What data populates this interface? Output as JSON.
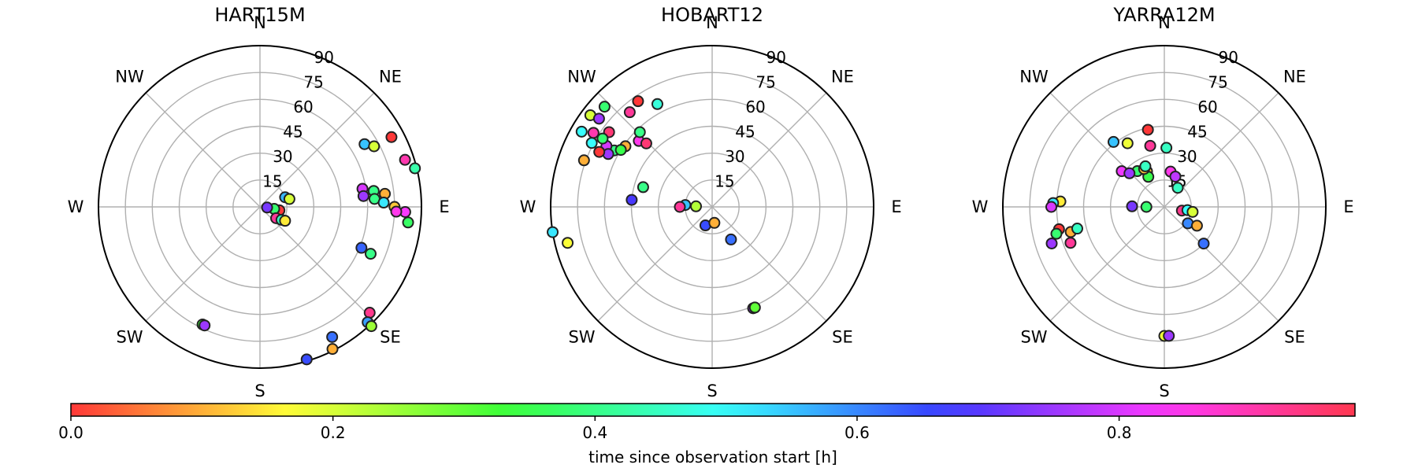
{
  "colorbar": {
    "label": "time since observation start [h]",
    "ticks": [
      0.0,
      0.2,
      0.4,
      0.6,
      0.8
    ],
    "tick_labels": [
      "0.0",
      "0.2",
      "0.4",
      "0.6",
      "0.8"
    ],
    "range": [
      0,
      0.98
    ],
    "colormap": "hsv"
  },
  "chart_data": [
    {
      "type": "scatter",
      "projection": "polar",
      "title": "HART15M",
      "r_ticks": [
        15,
        30,
        45,
        60,
        75,
        90
      ],
      "r_tick_labels": [
        "15",
        "30",
        "45",
        "60",
        "75",
        "90"
      ],
      "r_range": [
        0,
        90
      ],
      "direction_labels": [
        "E",
        "NE",
        "N",
        "NW",
        "W",
        "SW",
        "S",
        "SE"
      ],
      "direction_label_angles": [
        0,
        45,
        90,
        135,
        180,
        225,
        270,
        315
      ],
      "angle_unit": "degrees counterclockwise from E",
      "color_key": "time since observation start [h]",
      "points": [
        {
          "theta": 21,
          "r": 15,
          "t": 0.56
        },
        {
          "theta": 15,
          "r": 17,
          "t": 0.2
        },
        {
          "theta": -10,
          "r": 11,
          "t": 0.0
        },
        {
          "theta": -8,
          "r": 8,
          "t": 0.38
        },
        {
          "theta": -5,
          "r": 4,
          "t": 0.72
        },
        {
          "theta": -35,
          "r": 11,
          "t": 0.92
        },
        {
          "theta": -31,
          "r": 14,
          "t": 0.45
        },
        {
          "theta": -29,
          "r": 16,
          "t": 0.15
        },
        {
          "theta": 31,
          "r": 68,
          "t": 0.55
        },
        {
          "theta": 28,
          "r": 72,
          "t": 0.2
        },
        {
          "theta": 28,
          "r": 83,
          "t": 0.0
        },
        {
          "theta": 18,
          "r": 85,
          "t": 0.9
        },
        {
          "theta": 14,
          "r": 89,
          "t": 0.43
        },
        {
          "theta": 10,
          "r": 58,
          "t": 0.8
        },
        {
          "theta": 6,
          "r": 58,
          "t": 0.75
        },
        {
          "theta": 8,
          "r": 64,
          "t": 0.4
        },
        {
          "theta": 4,
          "r": 64,
          "t": 0.4
        },
        {
          "theta": 6,
          "r": 70,
          "t": 0.1
        },
        {
          "theta": 2,
          "r": 69,
          "t": 0.52
        },
        {
          "theta": 0,
          "r": 75,
          "t": 0.12
        },
        {
          "theta": -2,
          "r": 81,
          "t": 0.83
        },
        {
          "theta": -2,
          "r": 76,
          "t": 0.85
        },
        {
          "theta": -6,
          "r": 83,
          "t": 0.37
        },
        {
          "theta": -22,
          "r": 61,
          "t": 0.63
        },
        {
          "theta": -23,
          "r": 67,
          "t": 0.4
        },
        {
          "theta": -44,
          "r": 85,
          "t": 0.93
        },
        {
          "theta": -47,
          "r": 88,
          "t": 0.58
        },
        {
          "theta": -47,
          "r": 91,
          "t": 0.25
        },
        {
          "theta": -61,
          "r": 83,
          "t": 0.62
        },
        {
          "theta": -63,
          "r": 89,
          "t": 0.1
        },
        {
          "theta": -73,
          "r": 89,
          "t": 0.65
        },
        {
          "theta": -116,
          "r": 73,
          "t": 0.33
        },
        {
          "theta": -115,
          "r": 73,
          "t": 0.75
        }
      ]
    },
    {
      "type": "scatter",
      "projection": "polar",
      "title": "HOBART12",
      "r_ticks": [
        15,
        30,
        45,
        60,
        75,
        90
      ],
      "r_tick_labels": [
        "15",
        "30",
        "45",
        "60",
        "75",
        "90"
      ],
      "r_range": [
        0,
        90
      ],
      "direction_labels": [
        "E",
        "NE",
        "N",
        "NW",
        "W",
        "SW",
        "S",
        "SE"
      ],
      "direction_label_angles": [
        0,
        45,
        90,
        135,
        180,
        225,
        270,
        315
      ],
      "angle_unit": "degrees counterclockwise from E",
      "color_key": "time since observation start [h]",
      "points": [
        {
          "theta": 125,
          "r": 72,
          "t": 0.0
        },
        {
          "theta": 118,
          "r": 65,
          "t": 0.47
        },
        {
          "theta": 131,
          "r": 70,
          "t": 0.92
        },
        {
          "theta": 150,
          "r": 84,
          "t": 0.5
        },
        {
          "theta": 143,
          "r": 85,
          "t": 0.2
        },
        {
          "theta": 144,
          "r": 71,
          "t": 0.95
        },
        {
          "theta": 150,
          "r": 63,
          "t": 0.4
        },
        {
          "theta": 145,
          "r": 59,
          "t": 0.1
        },
        {
          "theta": 148,
          "r": 60,
          "t": 0.35
        },
        {
          "theta": 150,
          "r": 68,
          "t": 0.8
        },
        {
          "theta": 153,
          "r": 65,
          "t": 0.75
        },
        {
          "theta": 138,
          "r": 55,
          "t": 0.85
        },
        {
          "theta": 136,
          "r": 51,
          "t": 0.95
        },
        {
          "theta": 134,
          "r": 58,
          "t": 0.4
        },
        {
          "theta": 164,
          "r": 40,
          "t": 0.4
        },
        {
          "theta": 175,
          "r": 45,
          "t": 0.68
        },
        {
          "theta": 178,
          "r": 9,
          "t": 0.23
        },
        {
          "theta": 176,
          "r": 15,
          "t": 0.55
        },
        {
          "theta": 180,
          "r": 18,
          "t": 0.92
        },
        {
          "theta": -110,
          "r": 11,
          "t": 0.65
        },
        {
          "theta": -82,
          "r": 9,
          "t": 0.1
        },
        {
          "theta": -60,
          "r": 21,
          "t": 0.62
        },
        {
          "theta": -68,
          "r": 61,
          "t": 0.75
        },
        {
          "theta": -67,
          "r": 61,
          "t": 0.3
        },
        {
          "theta": -166,
          "r": 83,
          "t": 0.17
        },
        {
          "theta": -171,
          "r": 90,
          "t": 0.52
        },
        {
          "theta": -206,
          "r": 70,
          "t": 0.0
        },
        {
          "theta": -200,
          "r": 76,
          "t": 0.1
        },
        {
          "theta": -212,
          "r": 72,
          "t": 0.38
        },
        {
          "theta": -208,
          "r": 76,
          "t": 0.5
        },
        {
          "theta": -212,
          "r": 78,
          "t": 0.9
        },
        {
          "theta": -218,
          "r": 80,
          "t": 0.75
        },
        {
          "theta": -223,
          "r": 82,
          "t": 0.38
        }
      ]
    },
    {
      "type": "scatter",
      "projection": "polar",
      "title": "YARRA12M",
      "r_ticks": [
        15,
        30,
        45,
        60,
        75,
        90
      ],
      "r_tick_labels": [
        "15",
        "30",
        "45",
        "60",
        "75",
        "90"
      ],
      "r_range": [
        0,
        90
      ],
      "direction_labels": [
        "E",
        "NE",
        "N",
        "NW",
        "W",
        "SW",
        "S",
        "SE"
      ],
      "direction_label_angles": [
        0,
        45,
        90,
        135,
        180,
        225,
        270,
        315
      ],
      "angle_unit": "degrees counterclockwise from E",
      "color_key": "time since observation start [h]",
      "points": [
        {
          "theta": 102,
          "r": 44,
          "t": 0.0
        },
        {
          "theta": 120,
          "r": 41,
          "t": 0.18
        },
        {
          "theta": 128,
          "r": 46,
          "t": 0.55
        },
        {
          "theta": 103,
          "r": 35,
          "t": 0.92
        },
        {
          "theta": 88,
          "r": 33,
          "t": 0.45
        },
        {
          "theta": 116,
          "r": 22,
          "t": 0.13
        },
        {
          "theta": 118,
          "r": 19,
          "t": 0.35
        },
        {
          "theta": 127,
          "r": 25,
          "t": 0.38
        },
        {
          "theta": 140,
          "r": 31,
          "t": 0.82
        },
        {
          "theta": 136,
          "r": 27,
          "t": 0.75
        },
        {
          "theta": 118,
          "r": 24,
          "t": 0.12
        },
        {
          "theta": 115,
          "r": 25,
          "t": 0.45
        },
        {
          "theta": 80,
          "r": 20,
          "t": 0.85
        },
        {
          "theta": 70,
          "r": 18,
          "t": 0.78
        },
        {
          "theta": 55,
          "r": 13,
          "t": 0.45
        },
        {
          "theta": 180,
          "r": 10,
          "t": 0.38
        },
        {
          "theta": 179,
          "r": 18,
          "t": 0.72
        },
        {
          "theta": 177,
          "r": 58,
          "t": 0.15
        },
        {
          "theta": 178,
          "r": 62,
          "t": 0.52
        },
        {
          "theta": 180,
          "r": 63,
          "t": 0.8
        },
        {
          "theta": 192,
          "r": 60,
          "t": 0.0
        },
        {
          "theta": 194,
          "r": 62,
          "t": 0.38
        },
        {
          "theta": 198,
          "r": 66,
          "t": 0.75
        },
        {
          "theta": 195,
          "r": 54,
          "t": 0.1
        },
        {
          "theta": 194,
          "r": 50,
          "t": 0.45
        },
        {
          "theta": 201,
          "r": 56,
          "t": 0.92
        },
        {
          "theta": 270,
          "r": 72,
          "t": 0.18
        },
        {
          "theta": 272,
          "r": 72,
          "t": 0.75
        },
        {
          "theta": -12,
          "r": 10,
          "t": 0.93
        },
        {
          "theta": -8,
          "r": 13,
          "t": 0.5
        },
        {
          "theta": -10,
          "r": 16,
          "t": 0.2
        },
        {
          "theta": -35,
          "r": 16,
          "t": 0.6
        },
        {
          "theta": -30,
          "r": 21,
          "t": 0.1
        },
        {
          "theta": -43,
          "r": 30,
          "t": 0.62
        }
      ]
    }
  ]
}
